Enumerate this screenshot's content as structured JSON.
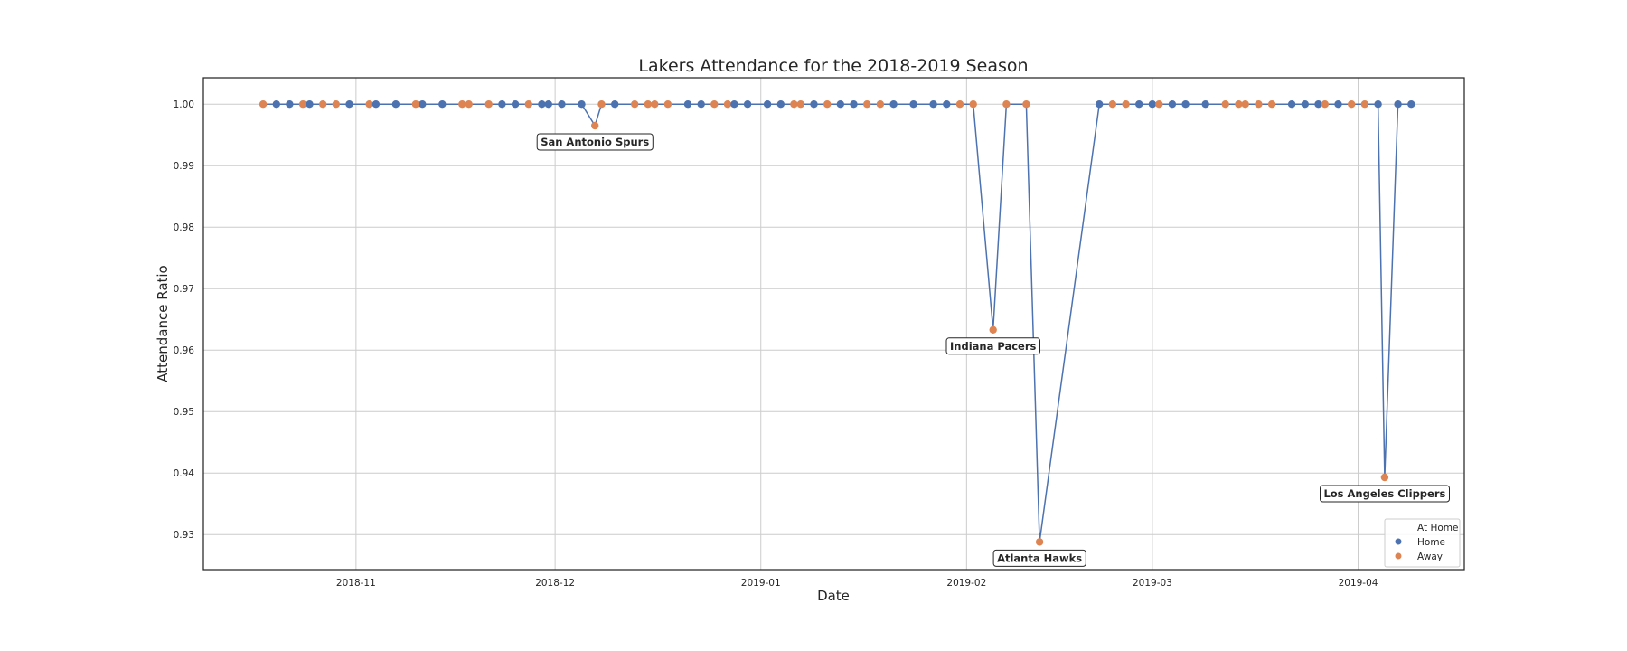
{
  "chart_data": {
    "type": "line",
    "title": "Lakers Attendance for the 2018-2019 Season",
    "xlabel": "Date",
    "ylabel": "Attendance Ratio",
    "ylim": [
      0.9243,
      1.0043
    ],
    "xlim": [
      "2018-10-09",
      "2019-04-17"
    ],
    "grid": true,
    "x_ticks": [
      "2018-11",
      "2018-12",
      "2019-01",
      "2019-02",
      "2019-03",
      "2019-04"
    ],
    "y_ticks": [
      "0.93",
      "0.94",
      "0.95",
      "0.96",
      "0.97",
      "0.98",
      "0.99",
      "1.00"
    ],
    "legend": {
      "title": "At Home",
      "placement": "lower-right",
      "entries": [
        {
          "label": "Home",
          "color": "#4c72b0"
        },
        {
          "label": "Away",
          "color": "#dd8452"
        }
      ]
    },
    "line_color": "#4c72b0",
    "games": [
      {
        "date": "2018-10-18",
        "home": false,
        "ratio": 1.0
      },
      {
        "date": "2018-10-20",
        "home": true,
        "ratio": 1.0
      },
      {
        "date": "2018-10-22",
        "home": true,
        "ratio": 1.0
      },
      {
        "date": "2018-10-24",
        "home": false,
        "ratio": 1.0
      },
      {
        "date": "2018-10-25",
        "home": true,
        "ratio": 1.0
      },
      {
        "date": "2018-10-27",
        "home": false,
        "ratio": 1.0
      },
      {
        "date": "2018-10-29",
        "home": false,
        "ratio": 1.0
      },
      {
        "date": "2018-10-31",
        "home": true,
        "ratio": 1.0
      },
      {
        "date": "2018-11-03",
        "home": false,
        "ratio": 1.0
      },
      {
        "date": "2018-11-04",
        "home": true,
        "ratio": 1.0
      },
      {
        "date": "2018-11-07",
        "home": true,
        "ratio": 1.0
      },
      {
        "date": "2018-11-10",
        "home": false,
        "ratio": 1.0
      },
      {
        "date": "2018-11-11",
        "home": true,
        "ratio": 1.0
      },
      {
        "date": "2018-11-14",
        "home": true,
        "ratio": 1.0
      },
      {
        "date": "2018-11-17",
        "home": false,
        "ratio": 1.0
      },
      {
        "date": "2018-11-18",
        "home": false,
        "ratio": 1.0
      },
      {
        "date": "2018-11-21",
        "home": false,
        "ratio": 1.0
      },
      {
        "date": "2018-11-23",
        "home": true,
        "ratio": 1.0
      },
      {
        "date": "2018-11-25",
        "home": true,
        "ratio": 1.0
      },
      {
        "date": "2018-11-27",
        "home": false,
        "ratio": 1.0
      },
      {
        "date": "2018-11-29",
        "home": true,
        "ratio": 1.0
      },
      {
        "date": "2018-11-30",
        "home": true,
        "ratio": 1.0
      },
      {
        "date": "2018-12-02",
        "home": true,
        "ratio": 1.0
      },
      {
        "date": "2018-12-05",
        "home": true,
        "ratio": 1.0
      },
      {
        "date": "2018-12-07",
        "home": false,
        "ratio": 0.9965,
        "annotation": "San Antonio Spurs"
      },
      {
        "date": "2018-12-08",
        "home": false,
        "ratio": 1.0
      },
      {
        "date": "2018-12-10",
        "home": true,
        "ratio": 1.0
      },
      {
        "date": "2018-12-13",
        "home": false,
        "ratio": 1.0
      },
      {
        "date": "2018-12-15",
        "home": false,
        "ratio": 1.0
      },
      {
        "date": "2018-12-16",
        "home": false,
        "ratio": 1.0
      },
      {
        "date": "2018-12-18",
        "home": false,
        "ratio": 1.0
      },
      {
        "date": "2018-12-21",
        "home": true,
        "ratio": 1.0
      },
      {
        "date": "2018-12-23",
        "home": true,
        "ratio": 1.0
      },
      {
        "date": "2018-12-25",
        "home": false,
        "ratio": 1.0
      },
      {
        "date": "2018-12-27",
        "home": false,
        "ratio": 1.0
      },
      {
        "date": "2018-12-28",
        "home": true,
        "ratio": 1.0
      },
      {
        "date": "2018-12-30",
        "home": true,
        "ratio": 1.0
      },
      {
        "date": "2019-01-02",
        "home": true,
        "ratio": 1.0
      },
      {
        "date": "2019-01-04",
        "home": true,
        "ratio": 1.0
      },
      {
        "date": "2019-01-06",
        "home": false,
        "ratio": 1.0
      },
      {
        "date": "2019-01-07",
        "home": false,
        "ratio": 1.0
      },
      {
        "date": "2019-01-09",
        "home": true,
        "ratio": 1.0
      },
      {
        "date": "2019-01-11",
        "home": false,
        "ratio": 1.0
      },
      {
        "date": "2019-01-13",
        "home": true,
        "ratio": 1.0
      },
      {
        "date": "2019-01-15",
        "home": true,
        "ratio": 1.0
      },
      {
        "date": "2019-01-17",
        "home": false,
        "ratio": 1.0
      },
      {
        "date": "2019-01-19",
        "home": false,
        "ratio": 1.0
      },
      {
        "date": "2019-01-21",
        "home": true,
        "ratio": 1.0
      },
      {
        "date": "2019-01-24",
        "home": true,
        "ratio": 1.0
      },
      {
        "date": "2019-01-27",
        "home": true,
        "ratio": 1.0
      },
      {
        "date": "2019-01-29",
        "home": true,
        "ratio": 1.0
      },
      {
        "date": "2019-01-31",
        "home": false,
        "ratio": 1.0
      },
      {
        "date": "2019-02-02",
        "home": false,
        "ratio": 1.0
      },
      {
        "date": "2019-02-05",
        "home": false,
        "ratio": 0.9633,
        "annotation": "Indiana Pacers"
      },
      {
        "date": "2019-02-07",
        "home": false,
        "ratio": 1.0
      },
      {
        "date": "2019-02-10",
        "home": false,
        "ratio": 1.0
      },
      {
        "date": "2019-02-12",
        "home": false,
        "ratio": 0.9288,
        "annotation": "Atlanta Hawks"
      },
      {
        "date": "2019-02-21",
        "home": true,
        "ratio": 1.0
      },
      {
        "date": "2019-02-23",
        "home": false,
        "ratio": 1.0
      },
      {
        "date": "2019-02-25",
        "home": false,
        "ratio": 1.0
      },
      {
        "date": "2019-02-27",
        "home": true,
        "ratio": 1.0
      },
      {
        "date": "2019-03-01",
        "home": true,
        "ratio": 1.0
      },
      {
        "date": "2019-03-02",
        "home": false,
        "ratio": 1.0
      },
      {
        "date": "2019-03-04",
        "home": true,
        "ratio": 1.0
      },
      {
        "date": "2019-03-06",
        "home": true,
        "ratio": 1.0
      },
      {
        "date": "2019-03-09",
        "home": true,
        "ratio": 1.0
      },
      {
        "date": "2019-03-12",
        "home": false,
        "ratio": 1.0
      },
      {
        "date": "2019-03-14",
        "home": false,
        "ratio": 1.0
      },
      {
        "date": "2019-03-15",
        "home": false,
        "ratio": 1.0
      },
      {
        "date": "2019-03-17",
        "home": false,
        "ratio": 1.0
      },
      {
        "date": "2019-03-19",
        "home": false,
        "ratio": 1.0
      },
      {
        "date": "2019-03-22",
        "home": true,
        "ratio": 1.0
      },
      {
        "date": "2019-03-24",
        "home": true,
        "ratio": 1.0
      },
      {
        "date": "2019-03-26",
        "home": true,
        "ratio": 1.0
      },
      {
        "date": "2019-03-27",
        "home": false,
        "ratio": 1.0
      },
      {
        "date": "2019-03-29",
        "home": true,
        "ratio": 1.0
      },
      {
        "date": "2019-03-31",
        "home": false,
        "ratio": 1.0
      },
      {
        "date": "2019-04-02",
        "home": false,
        "ratio": 1.0
      },
      {
        "date": "2019-04-04",
        "home": true,
        "ratio": 1.0
      },
      {
        "date": "2019-04-05",
        "home": false,
        "ratio": 0.9393,
        "annotation": "Los Angeles Clippers"
      },
      {
        "date": "2019-04-07",
        "home": true,
        "ratio": 1.0
      },
      {
        "date": "2019-04-09",
        "home": true,
        "ratio": 1.0
      }
    ]
  }
}
